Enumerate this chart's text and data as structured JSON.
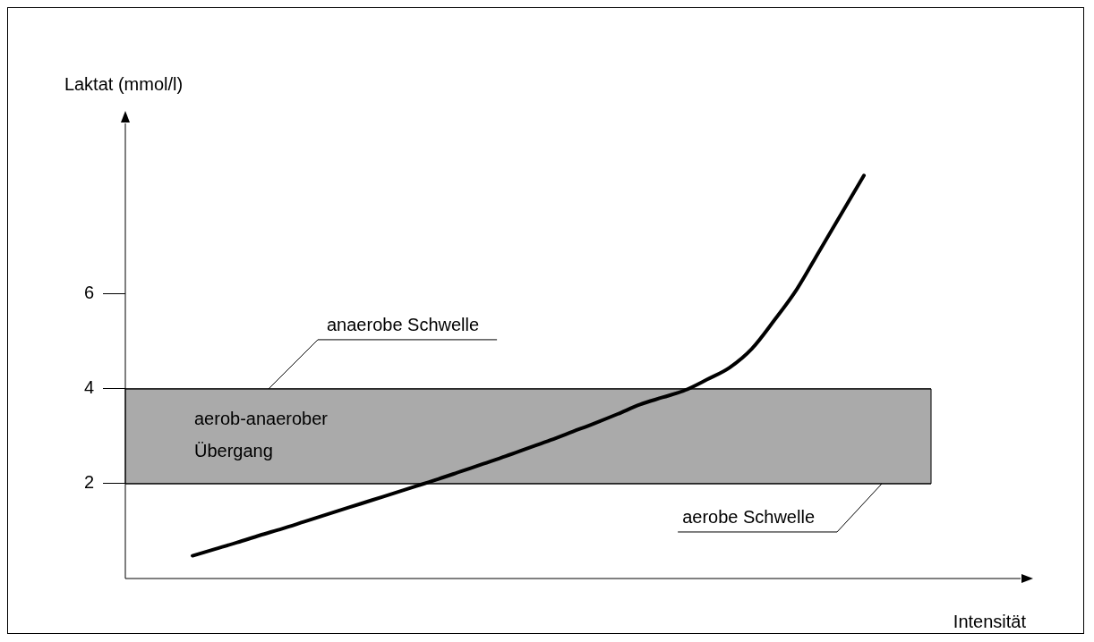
{
  "chart_data": {
    "type": "line",
    "xlabel": "Intensität",
    "ylabel": "Laktat (mmol/l)",
    "categories": [
      null,
      null,
      null,
      null,
      null,
      null,
      null,
      null,
      null,
      null,
      null,
      null,
      null,
      null,
      null,
      null,
      null,
      null,
      null,
      null,
      null,
      null,
      null,
      null,
      null,
      null,
      null,
      null,
      null,
      null,
      null,
      null,
      null,
      null,
      null,
      null,
      null,
      null,
      null,
      null,
      null
    ],
    "series": [
      {
        "color": "#000000",
        "values": [
          null,
          null,
          null,
          0.48,
          0.62,
          0.76,
          0.91,
          1.05,
          1.2,
          1.35,
          1.5,
          1.65,
          1.8,
          1.95,
          2.1,
          2.26,
          2.42,
          2.58,
          2.75,
          2.92,
          3.1,
          3.28,
          3.47,
          3.67,
          3.82,
          3.97,
          4.2,
          4.45,
          4.85,
          5.45,
          6.1,
          6.9,
          7.7,
          8.5,
          null,
          null,
          null,
          null,
          null,
          null,
          null
        ]
      }
    ],
    "ylim": [
      0,
      9.6
    ],
    "yticks": [
      2,
      4,
      6
    ],
    "tick_labels": "y",
    "grid": false,
    "legend": false,
    "marker": "none",
    "line_style": "solid",
    "bands": [
      {
        "axis": "y",
        "from": 2,
        "to": 4,
        "label": "aerob-anaerober Übergang",
        "color": "#aaaaaa"
      }
    ],
    "ref_lines": [
      {
        "axis": "y",
        "value": 4,
        "label": "anaerobe Schwelle",
        "color": "#000000"
      },
      {
        "axis": "y",
        "value": 2,
        "label": "aerobe Schwelle",
        "color": "#000000"
      }
    ]
  }
}
